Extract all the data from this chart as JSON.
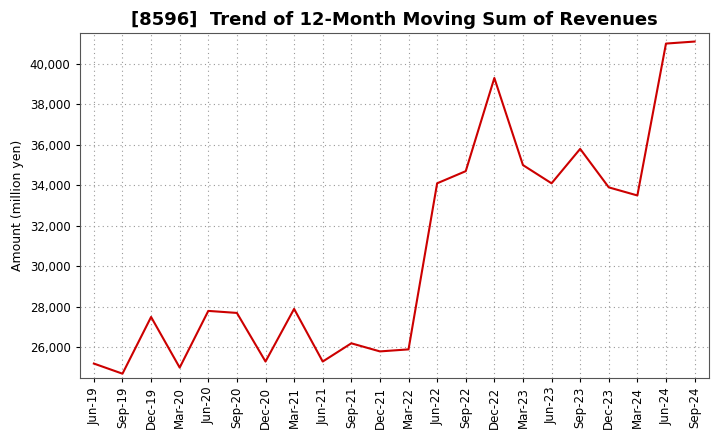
{
  "title": "[8596]  Trend of 12-Month Moving Sum of Revenues",
  "ylabel": "Amount (million yen)",
  "line_color": "#cc0000",
  "background_color": "#ffffff",
  "plot_bg_color": "#ffffff",
  "grid_color": "#999999",
  "labels": [
    "Jun-19",
    "Sep-19",
    "Dec-19",
    "Mar-20",
    "Jun-20",
    "Sep-20",
    "Dec-20",
    "Mar-21",
    "Jun-21",
    "Sep-21",
    "Dec-21",
    "Mar-22",
    "Jun-22",
    "Sep-22",
    "Dec-22",
    "Mar-23",
    "Jun-23",
    "Sep-23",
    "Dec-23",
    "Mar-24",
    "Jun-24",
    "Sep-24"
  ],
  "values": [
    25200,
    24700,
    27500,
    25000,
    27800,
    27700,
    25300,
    27900,
    25300,
    26200,
    25800,
    25900,
    34100,
    34700,
    39300,
    35000,
    34100,
    35800,
    33900,
    33500,
    41000,
    41100
  ],
  "ylim": [
    24500,
    41500
  ],
  "yticks": [
    26000,
    28000,
    30000,
    32000,
    34000,
    36000,
    38000,
    40000
  ],
  "title_fontsize": 13,
  "axis_fontsize": 9,
  "tick_fontsize": 8.5
}
